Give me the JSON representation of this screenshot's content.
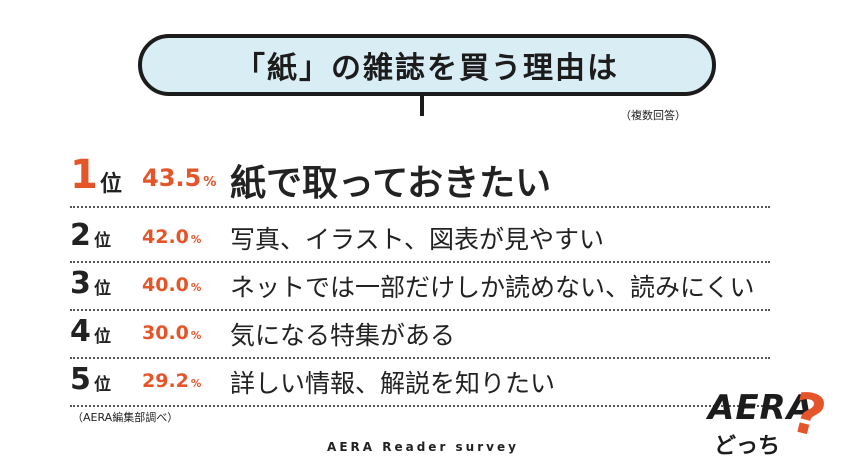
{
  "colors": {
    "accent": "#e5552a",
    "text": "#222222",
    "bubble": "#d9edf4"
  },
  "title": "「紙」の雑誌を買う理由は",
  "note": "（複数回答）",
  "chart_data": {
    "type": "table",
    "title": "「紙」の雑誌を買う理由は",
    "rank_unit": "位",
    "percent_sign": "%",
    "rows": [
      {
        "rank": "1",
        "value": "43.5",
        "label": "紙で取っておきたい"
      },
      {
        "rank": "2",
        "value": "42.0",
        "label": "写真、イラスト、図表が見やすい"
      },
      {
        "rank": "3",
        "value": "40.0",
        "label": "ネットでは一部だけしか読めない、読みにくい"
      },
      {
        "rank": "4",
        "value": "30.0",
        "label": "気になる特集がある"
      },
      {
        "rank": "5",
        "value": "29.2",
        "label": "詳しい情報、解説を知りたい"
      }
    ]
  },
  "source": "（AERA編集部調べ）",
  "survey": "AERA Reader survey",
  "logo": {
    "word": "AERA",
    "sub": "どっち",
    "mark": "?"
  }
}
